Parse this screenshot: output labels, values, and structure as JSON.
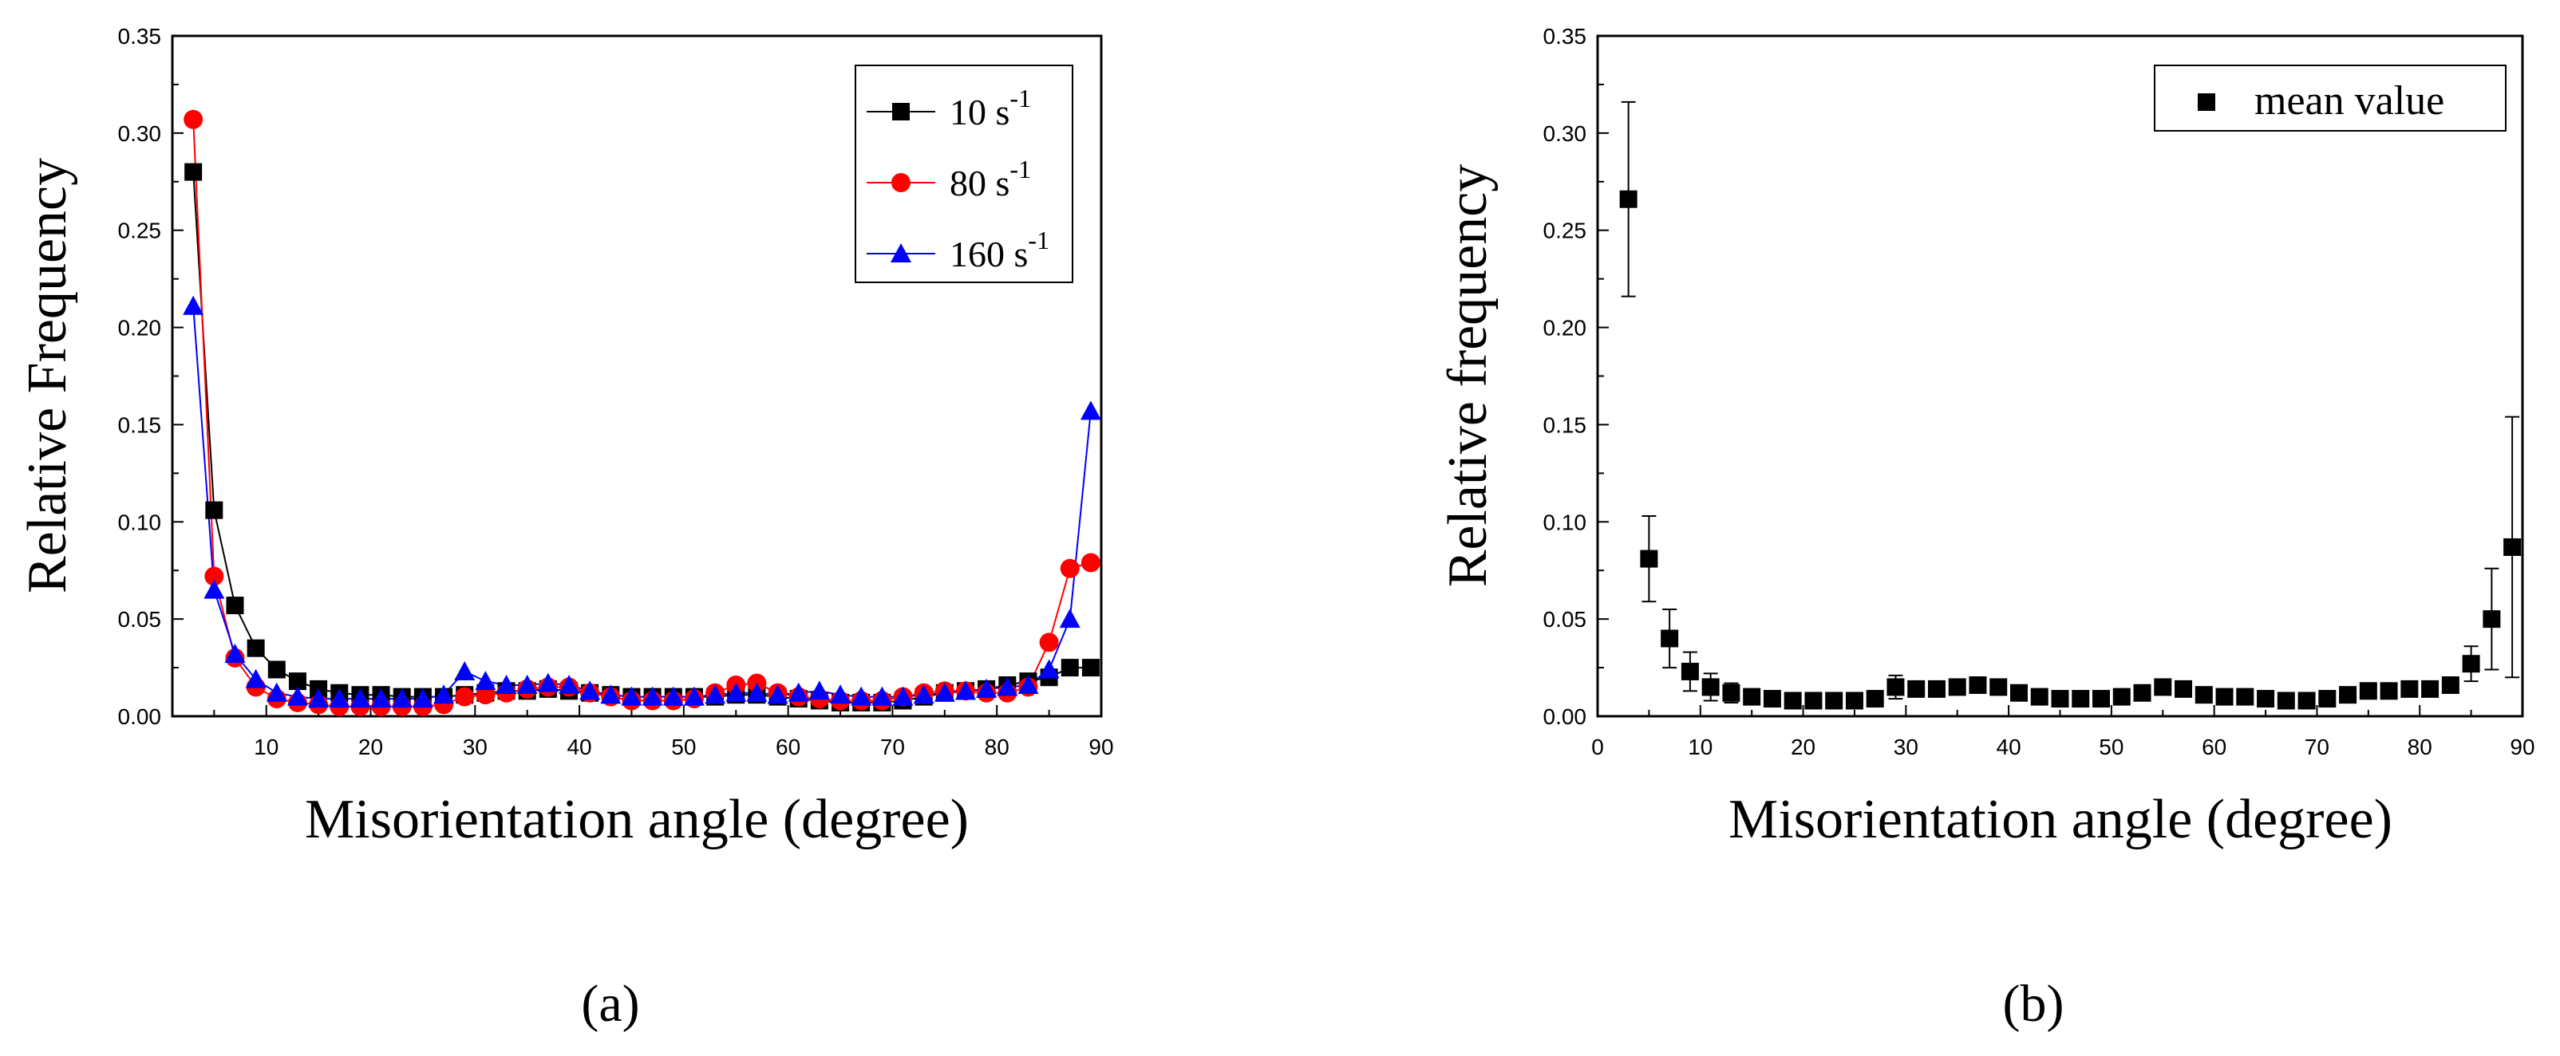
{
  "chart_data": [
    {
      "type": "line",
      "panel_label": "(a)",
      "xlabel": "Misorientation angle (degree)",
      "ylabel": "Relative Frequency",
      "xlim": [
        1,
        90
      ],
      "ylim": [
        0,
        0.35
      ],
      "xticks": [
        10,
        20,
        30,
        40,
        50,
        60,
        70,
        80,
        90
      ],
      "yticks": [
        0.0,
        0.05,
        0.1,
        0.15,
        0.2,
        0.25,
        0.3,
        0.35
      ],
      "xtick_labels": [
        "10",
        "20",
        "30",
        "40",
        "50",
        "60",
        "70",
        "80",
        "90"
      ],
      "ytick_labels": [
        "0.00",
        "0.05",
        "0.10",
        "0.15",
        "0.20",
        "0.25",
        "0.30",
        "0.35"
      ],
      "legend_position": "top-right",
      "x": [
        3,
        5,
        7,
        9,
        11,
        13,
        15,
        17,
        19,
        21,
        23,
        25,
        27,
        29,
        31,
        33,
        35,
        37,
        39,
        41,
        43,
        45,
        47,
        49,
        51,
        53,
        55,
        57,
        59,
        61,
        63,
        65,
        67,
        69,
        71,
        73,
        75,
        77,
        79,
        81,
        83,
        85,
        87,
        89
      ],
      "series": [
        {
          "name": "10 s",
          "sup": "-1",
          "color": "#000000",
          "marker": "square",
          "values": [
            0.28,
            0.106,
            0.057,
            0.035,
            0.024,
            0.018,
            0.014,
            0.012,
            0.011,
            0.011,
            0.01,
            0.01,
            0.01,
            0.011,
            0.012,
            0.013,
            0.013,
            0.014,
            0.013,
            0.012,
            0.011,
            0.01,
            0.01,
            0.01,
            0.01,
            0.01,
            0.011,
            0.011,
            0.01,
            0.009,
            0.008,
            0.007,
            0.007,
            0.007,
            0.008,
            0.01,
            0.012,
            0.013,
            0.014,
            0.016,
            0.018,
            0.02,
            0.025,
            0.025
          ]
        },
        {
          "name": "80 s",
          "sup": "-1",
          "color": "#ff0000",
          "marker": "circle",
          "values": [
            0.307,
            0.072,
            0.03,
            0.015,
            0.009,
            0.007,
            0.006,
            0.005,
            0.005,
            0.005,
            0.005,
            0.005,
            0.006,
            0.01,
            0.011,
            0.012,
            0.014,
            0.015,
            0.015,
            0.012,
            0.01,
            0.008,
            0.008,
            0.008,
            0.009,
            0.012,
            0.016,
            0.017,
            0.012,
            0.01,
            0.009,
            0.008,
            0.008,
            0.008,
            0.01,
            0.012,
            0.013,
            0.013,
            0.012,
            0.012,
            0.015,
            0.038,
            0.076,
            0.079
          ]
        },
        {
          "name": "160 s",
          "sup": "-1",
          "color": "#0000ff",
          "marker": "triangle",
          "values": [
            0.211,
            0.065,
            0.032,
            0.019,
            0.012,
            0.01,
            0.009,
            0.009,
            0.009,
            0.009,
            0.009,
            0.009,
            0.011,
            0.023,
            0.018,
            0.016,
            0.016,
            0.017,
            0.016,
            0.013,
            0.011,
            0.01,
            0.01,
            0.01,
            0.01,
            0.011,
            0.012,
            0.012,
            0.011,
            0.012,
            0.013,
            0.011,
            0.01,
            0.01,
            0.01,
            0.011,
            0.012,
            0.013,
            0.014,
            0.015,
            0.016,
            0.024,
            0.05,
            0.157
          ]
        }
      ]
    },
    {
      "type": "scatter",
      "panel_label": "(b)",
      "xlabel": "Misorientation angle (degree)",
      "ylabel": "Relative frequency",
      "xlim": [
        0,
        90
      ],
      "ylim": [
        0,
        0.35
      ],
      "xticks": [
        0,
        10,
        20,
        30,
        40,
        50,
        60,
        70,
        80,
        90
      ],
      "yticks": [
        0.0,
        0.05,
        0.1,
        0.15,
        0.2,
        0.25,
        0.3,
        0.35
      ],
      "xtick_labels": [
        "0",
        "10",
        "20",
        "30",
        "40",
        "50",
        "60",
        "70",
        "80",
        "90"
      ],
      "ytick_labels": [
        "0.00",
        "0.05",
        "0.10",
        "0.15",
        "0.20",
        "0.25",
        "0.30",
        "0.35"
      ],
      "legend_position": "top-right",
      "x": [
        3,
        5,
        7,
        9,
        11,
        13,
        15,
        17,
        19,
        21,
        23,
        25,
        27,
        29,
        31,
        33,
        35,
        37,
        39,
        41,
        43,
        45,
        47,
        49,
        51,
        53,
        55,
        57,
        59,
        61,
        63,
        65,
        67,
        69,
        71,
        73,
        75,
        77,
        79,
        81,
        83,
        85,
        87,
        89
      ],
      "series": [
        {
          "name": "mean value",
          "color": "#000000",
          "marker": "square",
          "values": [
            0.266,
            0.081,
            0.04,
            0.023,
            0.015,
            0.012,
            0.01,
            0.009,
            0.008,
            0.008,
            0.008,
            0.008,
            0.009,
            0.015,
            0.014,
            0.014,
            0.015,
            0.016,
            0.015,
            0.012,
            0.01,
            0.009,
            0.009,
            0.009,
            0.01,
            0.012,
            0.015,
            0.014,
            0.011,
            0.01,
            0.01,
            0.009,
            0.008,
            0.008,
            0.009,
            0.011,
            0.013,
            0.013,
            0.014,
            0.014,
            0.016,
            0.027,
            0.05,
            0.087
          ],
          "errors": [
            0.05,
            0.022,
            0.015,
            0.01,
            0.007,
            0.005,
            0.003,
            0.002,
            0.001,
            0.001,
            0.001,
            0.001,
            0.002,
            0.006,
            0.003,
            0.002,
            0.002,
            0.002,
            0.002,
            0.002,
            0.001,
            0.001,
            0.001,
            0.001,
            0.001,
            0.002,
            0.002,
            0.002,
            0.002,
            0.002,
            0.002,
            0.001,
            0.001,
            0.001,
            0.001,
            0.001,
            0.001,
            0.001,
            0.002,
            0.002,
            0.002,
            0.009,
            0.026,
            0.067
          ]
        }
      ]
    }
  ]
}
